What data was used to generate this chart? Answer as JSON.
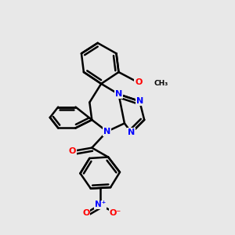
{
  "bg_color": "#e8e8e8",
  "bond_color": "#000000",
  "bond_width": 1.8,
  "figsize": [
    3.0,
    3.0
  ],
  "dpi": 100,
  "xlim": [
    0,
    1
  ],
  "ylim": [
    0,
    1
  ]
}
